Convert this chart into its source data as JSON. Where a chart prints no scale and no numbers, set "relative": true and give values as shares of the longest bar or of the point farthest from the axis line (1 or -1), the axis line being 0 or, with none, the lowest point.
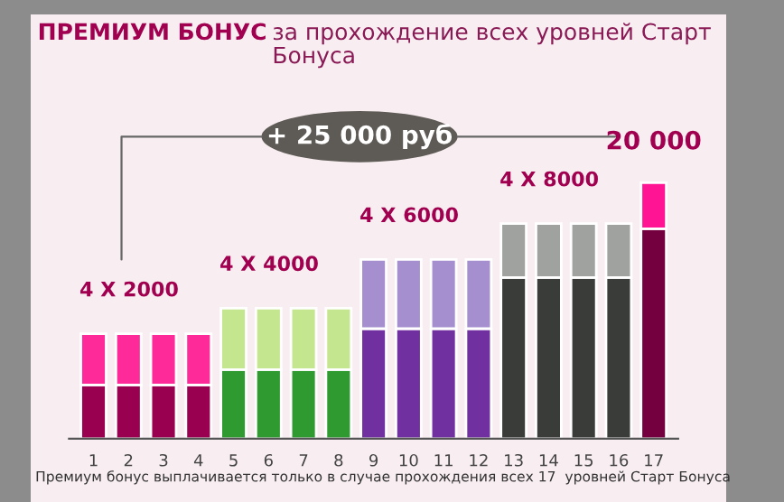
{
  "chart_data": {
    "type": "bar",
    "stacked": true,
    "relative": true,
    "title": "ПРЕМИУМ БОНУС",
    "subtitle": "за прохождение всех уровней Старт Бонуса",
    "categories": [
      "1",
      "2",
      "3",
      "4",
      "5",
      "6",
      "7",
      "8",
      "9",
      "10",
      "11",
      "12",
      "13",
      "14",
      "15",
      "16",
      "17"
    ],
    "series": [
      {
        "values": [
          0.21,
          0.21,
          0.21,
          0.21,
          0.27,
          0.27,
          0.27,
          0.27,
          0.43,
          0.43,
          0.43,
          0.43,
          0.63,
          0.63,
          0.63,
          0.63,
          0.82
        ],
        "colors": [
          "#990050",
          "#990050",
          "#990050",
          "#990050",
          "#2e9a30",
          "#2e9a30",
          "#2e9a30",
          "#2e9a30",
          "#7030a0",
          "#7030a0",
          "#7030a0",
          "#7030a0",
          "#3a3c3a",
          "#3a3c3a",
          "#3a3c3a",
          "#3a3c3a",
          "#75003f"
        ]
      },
      {
        "values": [
          0.2,
          0.2,
          0.2,
          0.2,
          0.24,
          0.24,
          0.24,
          0.24,
          0.27,
          0.27,
          0.27,
          0.27,
          0.21,
          0.21,
          0.21,
          0.21,
          0.18
        ],
        "colors": [
          "#ff2a9a",
          "#ff2a9a",
          "#ff2a9a",
          "#ff2a9a",
          "#c4e68e",
          "#c4e68e",
          "#c4e68e",
          "#c4e68e",
          "#a58fcf",
          "#a58fcf",
          "#a58fcf",
          "#a58fcf",
          "#a0a2a0",
          "#a0a2a0",
          "#a0a2a0",
          "#a0a2a0",
          "#ff1493"
        ]
      }
    ],
    "annotations": [
      "4 X 2000",
      "4 X 4000",
      "4 X 6000",
      "4 X 8000",
      "20 000",
      "+ 25 000 руб",
      "Премиум бонус выплачивается только в случае прохождения всех 17  уровней Старт Бонуса"
    ],
    "grid": false,
    "legend": false
  }
}
